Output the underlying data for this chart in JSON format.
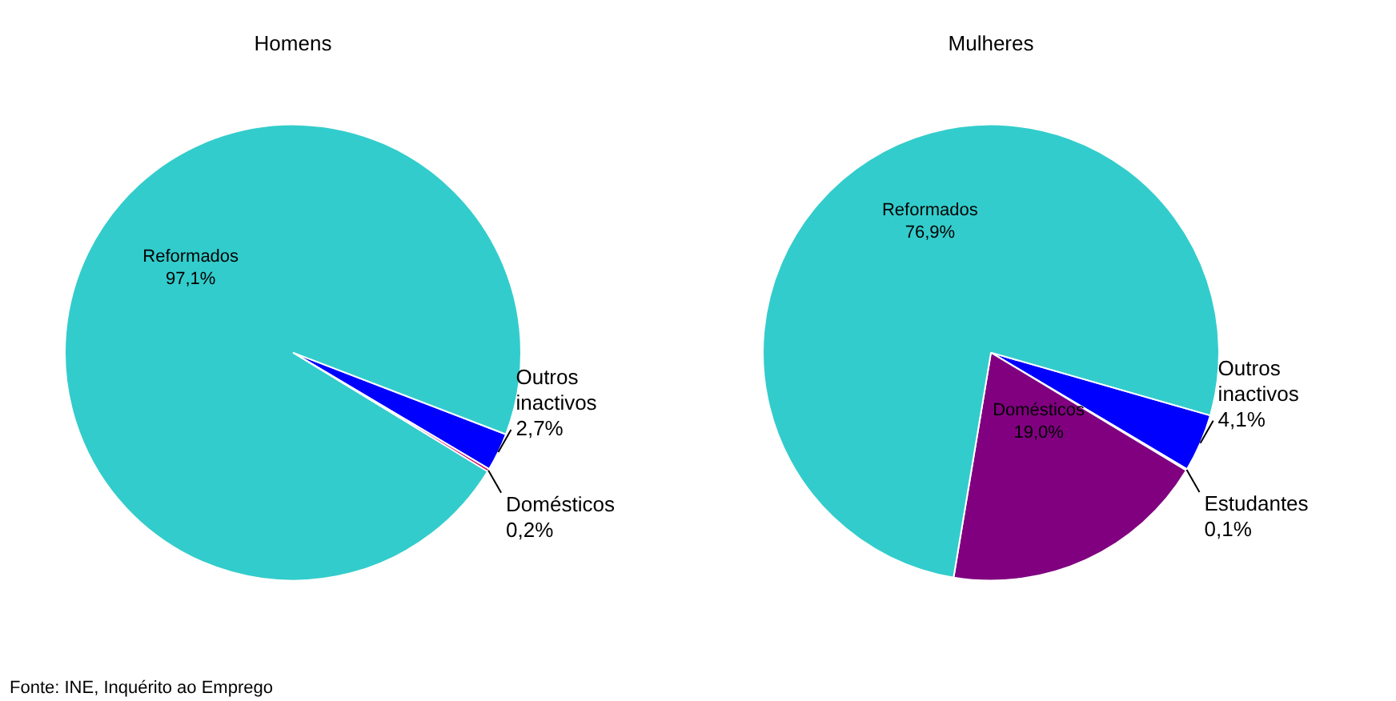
{
  "chart_data": [
    {
      "type": "pie",
      "title": "Homens",
      "categories": [
        "Outros inactivos",
        "Domésticos",
        "Reformados"
      ],
      "values": [
        2.7,
        0.2,
        97.1
      ],
      "colors": [
        "#0000ff",
        "#cc0066",
        "#33cccc"
      ],
      "value_labels": [
        "2,7%",
        "0,2%",
        "97,1%"
      ],
      "legend": false,
      "annotations": [
        "Fonte: INE, Inquérito ao Emprego"
      ]
    },
    {
      "type": "pie",
      "title": "Mulheres",
      "categories": [
        "Outros inactivos",
        "Estudantes",
        "Domésticos",
        "Reformados"
      ],
      "values": [
        4.1,
        0.1,
        19.0,
        76.9
      ],
      "colors": [
        "#0000ff",
        "#ffffff",
        "#800080",
        "#33cccc"
      ],
      "value_labels": [
        "4,1%",
        "0,1%",
        "19,0%",
        "76,9%"
      ],
      "legend": false
    }
  ]
}
